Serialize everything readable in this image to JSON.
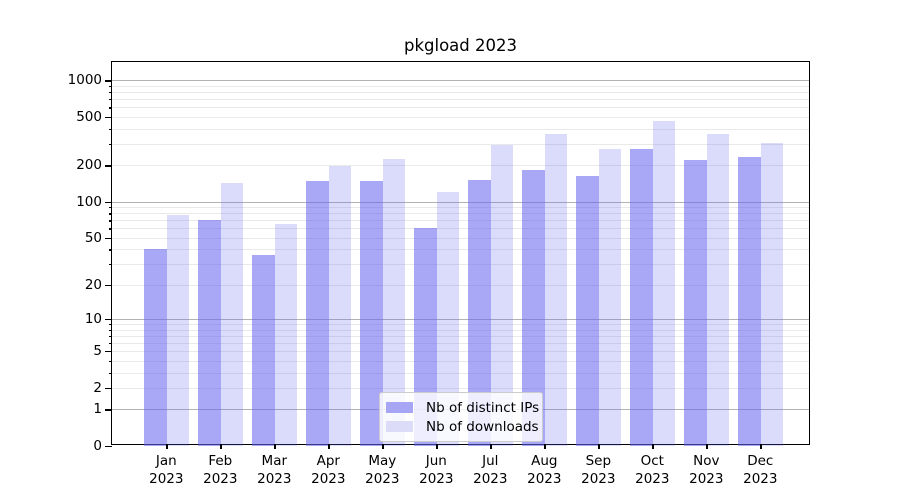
{
  "chart_data": {
    "type": "bar",
    "title": "pkgload 2023",
    "y_scale": "log1p",
    "ylim": [
      0,
      1430
    ],
    "grid": "horizontal, major at 1/10/100/1000, light minors at 2-9 per decade",
    "legend_position": "lower center inside plot",
    "y_ticks": [
      {
        "v": 1000,
        "label": "1000"
      },
      {
        "v": 500,
        "label": "500"
      },
      {
        "v": 200,
        "label": "200"
      },
      {
        "v": 100,
        "label": "100"
      },
      {
        "v": 50,
        "label": "50"
      },
      {
        "v": 20,
        "label": "20"
      },
      {
        "v": 10,
        "label": "10"
      },
      {
        "v": 5,
        "label": "5"
      },
      {
        "v": 2,
        "label": "2"
      },
      {
        "v": 1,
        "label": "1"
      },
      {
        "v": 0,
        "label": "0"
      }
    ],
    "y_major_gridlines": [
      1,
      10,
      100,
      1000
    ],
    "categories": [
      {
        "month": "Jan",
        "year": "2023"
      },
      {
        "month": "Feb",
        "year": "2023"
      },
      {
        "month": "Mar",
        "year": "2023"
      },
      {
        "month": "Apr",
        "year": "2023"
      },
      {
        "month": "May",
        "year": "2023"
      },
      {
        "month": "Jun",
        "year": "2023"
      },
      {
        "month": "Jul",
        "year": "2023"
      },
      {
        "month": "Aug",
        "year": "2023"
      },
      {
        "month": "Sep",
        "year": "2023"
      },
      {
        "month": "Oct",
        "year": "2023"
      },
      {
        "month": "Nov",
        "year": "2023"
      },
      {
        "month": "Dec",
        "year": "2023"
      }
    ],
    "series": [
      {
        "name": "Nb of distinct IPs",
        "fill": "rgba(100,100,240,0.56)",
        "swatch_color": "#a6a6f4",
        "values": [
          40,
          70,
          36,
          148,
          148,
          61,
          152,
          184,
          164,
          270,
          219,
          236
        ]
      },
      {
        "name": "Nb of downloads",
        "fill": "rgba(100,100,240,0.23)",
        "swatch_color": "#dcdcf9",
        "values": [
          78,
          142,
          65,
          197,
          224,
          121,
          295,
          360,
          270,
          465,
          365,
          306
        ]
      }
    ]
  }
}
